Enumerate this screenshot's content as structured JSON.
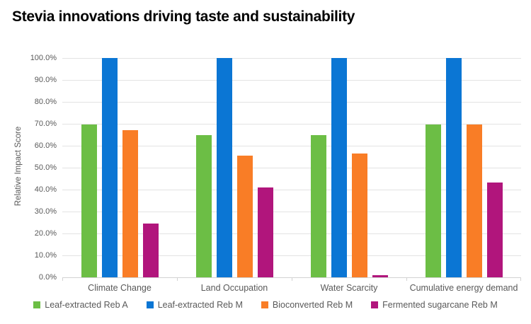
{
  "title": "Stevia innovations driving taste and sustainability",
  "chart_data": {
    "type": "bar",
    "title": "Stevia innovations driving taste and sustainability",
    "xlabel": "",
    "ylabel": "Relative Impact Score",
    "ylim": [
      0,
      100
    ],
    "y_tick_step": 10,
    "y_tick_labels": [
      "0.0%",
      "10.0%",
      "20.0%",
      "30.0%",
      "40.0%",
      "50.0%",
      "60.0%",
      "70.0%",
      "80.0%",
      "90.0%",
      "100.0%"
    ],
    "grid": true,
    "legend_position": "bottom",
    "categories": [
      "Climate Change",
      "Land Occupation",
      "Water Scarcity",
      "Cumulative energy demand"
    ],
    "series": [
      {
        "name": "Leaf-extracted Reb A",
        "color": "#6cbe45",
        "values": [
          69.7,
          65.0,
          65.0,
          69.7
        ]
      },
      {
        "name": "Leaf-extracted Reb M",
        "color": "#0b76d4",
        "values": [
          100.0,
          100.0,
          100.0,
          100.0
        ]
      },
      {
        "name": "Bioconverted Reb M",
        "color": "#f97d26",
        "values": [
          67.0,
          55.5,
          56.5,
          69.7
        ]
      },
      {
        "name": "Fermented sugarcane Reb M",
        "color": "#b1157c",
        "values": [
          24.6,
          41.0,
          1.0,
          43.1
        ]
      }
    ]
  }
}
